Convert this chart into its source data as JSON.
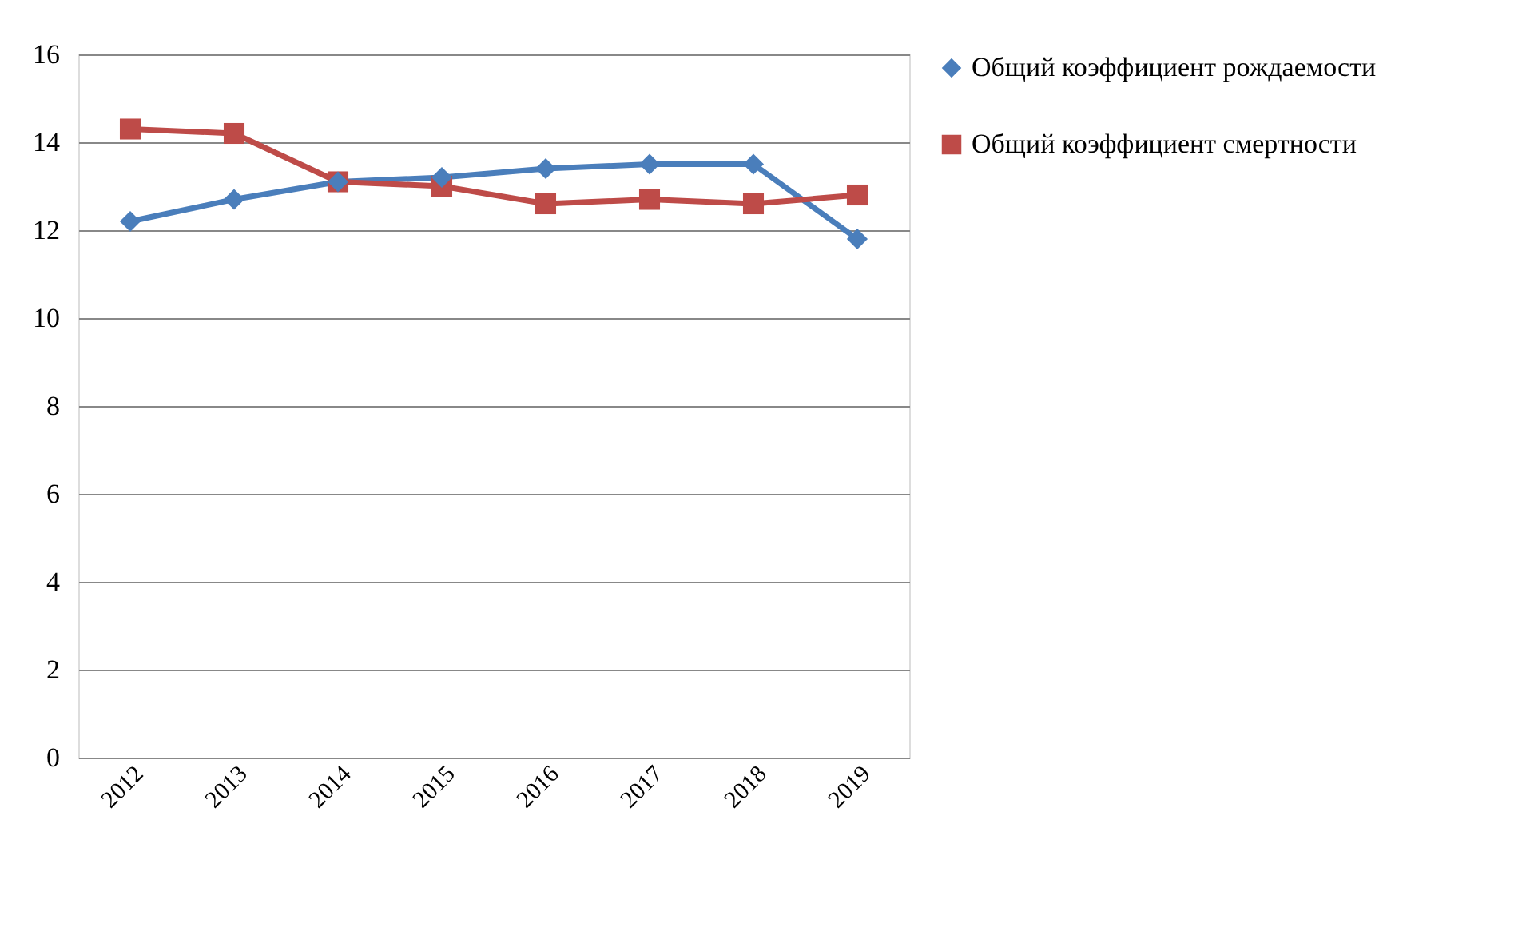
{
  "chart_data": {
    "type": "line",
    "categories": [
      "2012",
      "2013",
      "2014",
      "2015",
      "2016",
      "2017",
      "2018",
      "2019"
    ],
    "series": [
      {
        "name": "Общий коэффициент рождаемости",
        "color": "#4a7ebb",
        "marker": "diamond",
        "values": [
          12.2,
          12.7,
          13.1,
          13.2,
          13.4,
          13.5,
          13.5,
          11.8
        ]
      },
      {
        "name": "Общий коэффициент смертности",
        "color": "#be4b48",
        "marker": "square",
        "values": [
          14.3,
          14.2,
          13.1,
          13.0,
          12.6,
          12.7,
          12.6,
          12.8
        ]
      }
    ],
    "ylim": [
      0,
      16
    ],
    "yticks": [
      0,
      2,
      4,
      6,
      8,
      10,
      12,
      14,
      16
    ],
    "grid": "y",
    "legend": "right",
    "line_style": "solid"
  }
}
